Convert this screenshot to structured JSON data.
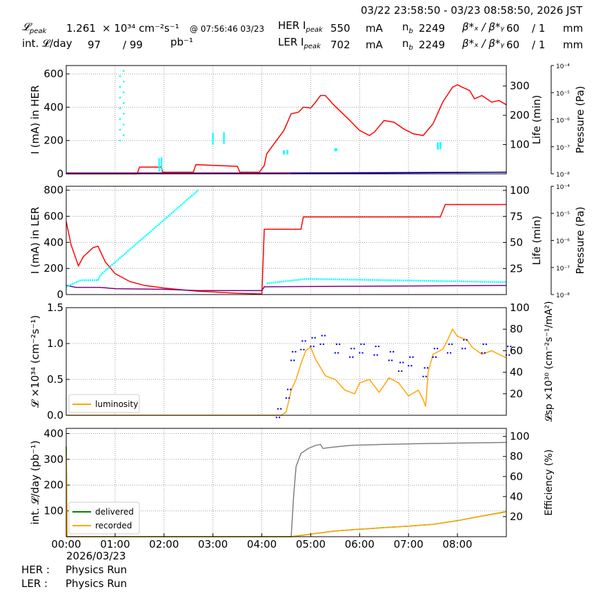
{
  "header": {
    "time_range": "03/22 23:58:50 - 03/23 08:58:50, 2026 JST",
    "lpeak_label": "𝓛",
    "lpeak_sub": "peak",
    "lpeak_value": "1.261",
    "lpeak_unit": "× 10³⁴ cm⁻²s⁻¹",
    "lpeak_time": "@ 07:56:46 03/23",
    "intl_label": "int. 𝓛/day",
    "intl_value": "97",
    "intl_slash": "/ 99",
    "intl_unit": "pb⁻¹",
    "her_label": "HER I",
    "her_sub": "peak",
    "her_value": "550",
    "her_unit": "mA",
    "ler_label": "LER I",
    "ler_sub": "peak",
    "ler_value": "702",
    "ler_unit": "mA",
    "nb_label": "n",
    "nb_sub": "b",
    "nb_her": "2249",
    "nb_ler": "2249",
    "beta_label": "β*ₓ / β*ᵧ",
    "beta_her": "60",
    "beta_her_slash": "/ 1",
    "beta_ler": "60",
    "beta_ler_slash": "/ 1",
    "beta_unit": "mm"
  },
  "footer": {
    "her_label": "HER :",
    "her_state": "Physics Run",
    "ler_label": "LER :",
    "ler_state": "Physics Run",
    "date": "2026/03/23"
  },
  "colors": {
    "current": "#ff0000",
    "pressure": "#800080",
    "life": "#00ffff",
    "lumi": "#ffa500",
    "spec": "#0000ff",
    "delivered": "#008000",
    "recorded": "#ffa500",
    "efficiency": "#808080",
    "her_blue": "#0000aa"
  },
  "chart_data": [
    {
      "type": "line",
      "panel": "HER",
      "ylabel": "I (mA) in HER",
      "ylim": [
        0,
        650
      ],
      "yticks": [
        "0",
        "200",
        "400",
        "600"
      ],
      "y2label": "Life (min)",
      "y2lim": [
        0,
        370
      ],
      "y2ticks": [
        "100",
        "200",
        "300"
      ],
      "y3label": "Pressure (Pa)",
      "y3ticks": [
        "10⁻⁸",
        "10⁻⁷",
        "10⁻⁶",
        "10⁻⁵",
        "10⁻⁴"
      ],
      "x_hours": [
        0,
        9
      ],
      "series": [
        {
          "name": "current",
          "points": [
            [
              0,
              0
            ],
            [
              0.97,
              0
            ],
            [
              1.45,
              0
            ],
            [
              1.5,
              40
            ],
            [
              1.95,
              40
            ],
            [
              1.97,
              10
            ],
            [
              2.6,
              10
            ],
            [
              2.65,
              55
            ],
            [
              3.5,
              45
            ],
            [
              3.55,
              10
            ],
            [
              3.95,
              10
            ],
            [
              4.05,
              50
            ],
            [
              4.1,
              120
            ],
            [
              4.3,
              200
            ],
            [
              4.45,
              260
            ],
            [
              4.6,
              360
            ],
            [
              4.75,
              370
            ],
            [
              4.85,
              400
            ],
            [
              5.0,
              395
            ],
            [
              5.1,
              430
            ],
            [
              5.2,
              470
            ],
            [
              5.3,
              470
            ],
            [
              5.45,
              420
            ],
            [
              5.8,
              320
            ],
            [
              6.0,
              260
            ],
            [
              6.2,
              230
            ],
            [
              6.3,
              250
            ],
            [
              6.5,
              320
            ],
            [
              6.7,
              310
            ],
            [
              6.9,
              270
            ],
            [
              7.1,
              240
            ],
            [
              7.3,
              230
            ],
            [
              7.5,
              300
            ],
            [
              7.7,
              430
            ],
            [
              7.9,
              520
            ],
            [
              8.0,
              535
            ],
            [
              8.1,
              520
            ],
            [
              8.25,
              500
            ],
            [
              8.35,
              450
            ],
            [
              8.5,
              470
            ],
            [
              8.7,
              430
            ],
            [
              8.85,
              440
            ],
            [
              9.0,
              415
            ]
          ]
        },
        {
          "name": "pressure",
          "points": [
            [
              0,
              5
            ],
            [
              4.0,
              5
            ],
            [
              9.0,
              10
            ]
          ]
        },
        {
          "name": "her_blue",
          "points": [
            [
              4.6,
              2
            ],
            [
              9.0,
              10
            ]
          ]
        }
      ],
      "life_clusters": [
        [
          1.1,
          1.25,
          200,
          650
        ],
        [
          1.9,
          2.0,
          20,
          100
        ],
        [
          3.0,
          3.45,
          180,
          250
        ],
        [
          4.45,
          4.6,
          120,
          140
        ],
        [
          5.5,
          5.55,
          140,
          150
        ],
        [
          7.6,
          7.7,
          150,
          190
        ]
      ]
    },
    {
      "type": "line",
      "panel": "LER",
      "ylabel": "I (mA) in LER",
      "ylim": [
        0,
        830
      ],
      "yticks": [
        "0",
        "200",
        "400",
        "600",
        "800"
      ],
      "y2label": "Life (min)",
      "y2lim": [
        0,
        104
      ],
      "y2ticks": [
        "25",
        "50",
        "75",
        "100"
      ],
      "y3label": "Pressure (Pa)",
      "y3ticks": [
        "10⁻⁸",
        "10⁻⁷",
        "10⁻⁶",
        "10⁻⁵",
        "10⁻⁴"
      ],
      "x_hours": [
        0,
        9
      ],
      "series": [
        {
          "name": "current",
          "points": [
            [
              0,
              560
            ],
            [
              0.1,
              380
            ],
            [
              0.25,
              220
            ],
            [
              0.35,
              290
            ],
            [
              0.55,
              360
            ],
            [
              0.65,
              370
            ],
            [
              0.8,
              250
            ],
            [
              1.0,
              160
            ],
            [
              1.3,
              100
            ],
            [
              1.6,
              70
            ],
            [
              2.0,
              50
            ],
            [
              2.4,
              35
            ],
            [
              2.7,
              25
            ],
            [
              3.0,
              20
            ],
            [
              3.5,
              10
            ],
            [
              4.0,
              5
            ],
            [
              4.05,
              500
            ],
            [
              4.8,
              500
            ],
            [
              4.85,
              595
            ],
            [
              7.65,
              595
            ],
            [
              7.7,
              640
            ],
            [
              7.75,
              690
            ],
            [
              9.0,
              690
            ]
          ]
        },
        {
          "name": "pressure",
          "points": [
            [
              0,
              70
            ],
            [
              0.2,
              55
            ],
            [
              0.7,
              55
            ],
            [
              1.0,
              45
            ],
            [
              2.0,
              40
            ],
            [
              2.7,
              30
            ],
            [
              4.0,
              30
            ],
            [
              4.05,
              60
            ],
            [
              9.0,
              70
            ]
          ]
        },
        {
          "name": "life",
          "points": [
            [
              0,
              60
            ],
            [
              0.3,
              110
            ],
            [
              0.65,
              110
            ],
            [
              0.7,
              150
            ],
            [
              2.7,
              800
            ]
          ]
        },
        {
          "name": "life_flat",
          "points": [
            [
              4.1,
              85
            ],
            [
              4.9,
              120
            ],
            [
              9.0,
              95
            ]
          ]
        }
      ]
    },
    {
      "type": "line",
      "panel": "Luminosity",
      "ylabel": "𝓛 ×10³⁴ (cm⁻²s⁻¹)",
      "ylim": [
        0,
        1.5
      ],
      "yticks": [
        "0.0",
        "0.5",
        "1.0",
        "1.5"
      ],
      "y2label": "𝓛sp ×10³⁰ (cm⁻²s⁻¹/mA²)",
      "y2lim": [
        0,
        100
      ],
      "y2ticks": [
        "20",
        "40",
        "60",
        "80",
        "100"
      ],
      "x_hours": [
        0,
        9
      ],
      "legend": [
        "luminosity"
      ],
      "series": [
        {
          "name": "luminosity",
          "points": [
            [
              0,
              0
            ],
            [
              4.4,
              0
            ],
            [
              4.5,
              0.05
            ],
            [
              4.6,
              0.35
            ],
            [
              4.7,
              0.5
            ],
            [
              4.8,
              0.72
            ],
            [
              4.9,
              0.9
            ],
            [
              5.0,
              0.95
            ],
            [
              5.1,
              0.78
            ],
            [
              5.3,
              0.55
            ],
            [
              5.5,
              0.5
            ],
            [
              5.7,
              0.35
            ],
            [
              5.9,
              0.3
            ],
            [
              6.0,
              0.45
            ],
            [
              6.2,
              0.5
            ],
            [
              6.4,
              0.32
            ],
            [
              6.6,
              0.52
            ],
            [
              6.8,
              0.45
            ],
            [
              7.0,
              0.27
            ],
            [
              7.2,
              0.35
            ],
            [
              7.3,
              0.22
            ],
            [
              7.35,
              0.12
            ],
            [
              7.4,
              0.6
            ],
            [
              7.5,
              0.85
            ],
            [
              7.7,
              0.92
            ],
            [
              7.8,
              1.05
            ],
            [
              7.9,
              1.2
            ],
            [
              8.0,
              1.1
            ],
            [
              8.2,
              1.05
            ],
            [
              8.3,
              0.95
            ],
            [
              8.5,
              0.85
            ],
            [
              8.7,
              0.9
            ],
            [
              9.0,
              0.8
            ]
          ]
        },
        {
          "name": "specific",
          "points": [
            [
              4.3,
              2
            ],
            [
              4.5,
              20
            ],
            [
              4.6,
              55
            ],
            [
              4.8,
              65
            ],
            [
              5.0,
              68
            ],
            [
              5.2,
              70
            ],
            [
              5.5,
              62
            ],
            [
              5.8,
              58
            ],
            [
              6.0,
              62
            ],
            [
              6.3,
              60
            ],
            [
              6.6,
              55
            ],
            [
              6.8,
              45
            ],
            [
              7.0,
              50
            ],
            [
              7.3,
              40
            ],
            [
              7.5,
              58
            ],
            [
              7.8,
              62
            ],
            [
              8.1,
              66
            ],
            [
              8.5,
              62
            ],
            [
              9.0,
              60
            ]
          ]
        }
      ]
    },
    {
      "type": "line",
      "panel": "Integrated",
      "ylabel": "int. 𝓛/day (pb⁻¹)",
      "ylim": [
        0,
        420
      ],
      "yticks": [
        "100",
        "200",
        "300",
        "400"
      ],
      "y2label": "Efficiency (%)",
      "y2lim": [
        0,
        108
      ],
      "y2ticks": [
        "20",
        "40",
        "60",
        "80",
        "100"
      ],
      "x_hours": [
        0,
        9
      ],
      "xticks": [
        "00:00",
        "01:00",
        "02:00",
        "03:00",
        "04:00",
        "05:00",
        "06:00",
        "07:00",
        "08:00"
      ],
      "legend": [
        "delivered",
        "recorded"
      ],
      "series": [
        {
          "name": "delivered",
          "points": [
            [
              0,
              350
            ],
            [
              0.02,
              0
            ],
            [
              4.6,
              0
            ],
            [
              5.0,
              10
            ],
            [
              5.5,
              22
            ],
            [
              6.0,
              29
            ],
            [
              6.5,
              35
            ],
            [
              7.0,
              41
            ],
            [
              7.5,
              48
            ],
            [
              8.0,
              62
            ],
            [
              8.5,
              80
            ],
            [
              9.0,
              97
            ]
          ]
        },
        {
          "name": "recorded",
          "points": [
            [
              0,
              330
            ],
            [
              0.02,
              0
            ],
            [
              4.6,
              0
            ],
            [
              5.0,
              10
            ],
            [
              5.5,
              22
            ],
            [
              6.0,
              29
            ],
            [
              6.5,
              35
            ],
            [
              7.0,
              41
            ],
            [
              7.5,
              48
            ],
            [
              8.0,
              62
            ],
            [
              8.5,
              80
            ],
            [
              9.0,
              96
            ]
          ]
        },
        {
          "name": "efficiency",
          "points": [
            [
              4.6,
              0
            ],
            [
              4.65,
              40
            ],
            [
              4.7,
              70
            ],
            [
              4.8,
              83
            ],
            [
              4.95,
              88
            ],
            [
              5.1,
              91
            ],
            [
              5.2,
              92
            ],
            [
              5.25,
              88
            ],
            [
              5.4,
              89
            ],
            [
              5.8,
              91
            ],
            [
              6.5,
              92
            ],
            [
              7.5,
              93
            ],
            [
              9.0,
              94
            ]
          ]
        }
      ]
    }
  ]
}
